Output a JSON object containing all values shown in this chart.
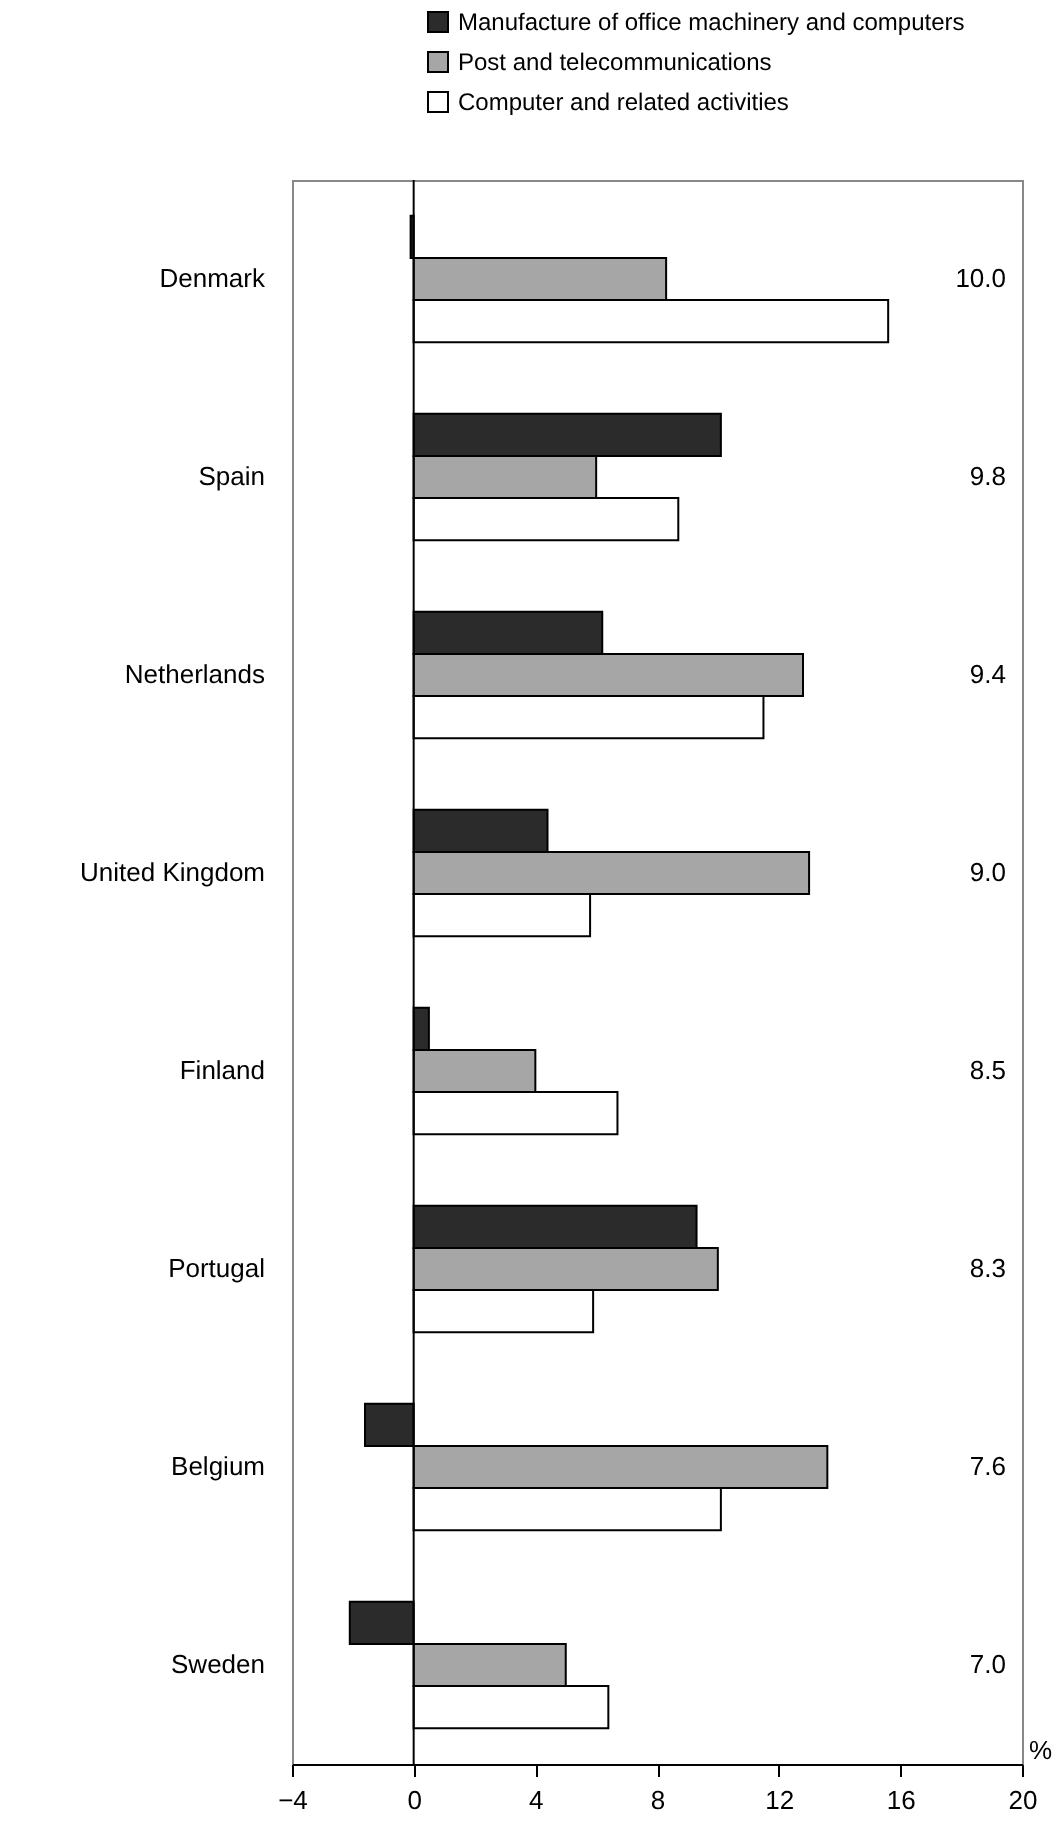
{
  "chart_data": {
    "type": "bar",
    "orientation": "horizontal",
    "xlabel": "%",
    "categories": [
      "Denmark",
      "Spain",
      "Netherlands",
      "United Kingdom",
      "Finland",
      "Portugal",
      "Belgium",
      "Sweden"
    ],
    "series": [
      {
        "name": "Manufacture of office machinery and computers",
        "color": "#2b2b2b",
        "values": [
          -0.1,
          10.1,
          6.2,
          4.4,
          0.5,
          9.3,
          -1.6,
          -2.1
        ]
      },
      {
        "name": "Post and telecommunications",
        "color": "#a6a6a6",
        "values": [
          8.3,
          6.0,
          12.8,
          13.0,
          4.0,
          10.0,
          13.6,
          5.0
        ]
      },
      {
        "name": "Computer and related activities",
        "color": "#ffffff",
        "values": [
          15.6,
          8.7,
          11.5,
          5.8,
          6.7,
          5.9,
          10.1,
          6.4
        ]
      }
    ],
    "xlim": [
      -4,
      20
    ],
    "xticks": [
      -4,
      0,
      4,
      8,
      12,
      16,
      20
    ],
    "grid": false,
    "legend": "top",
    "ref_lines": [
      {
        "axis": "x",
        "value": 0
      }
    ],
    "annotations": [
      "10.0",
      "9.8",
      "9.4",
      "9.0",
      "8.5",
      "8.3",
      "7.6",
      "7.0"
    ]
  }
}
